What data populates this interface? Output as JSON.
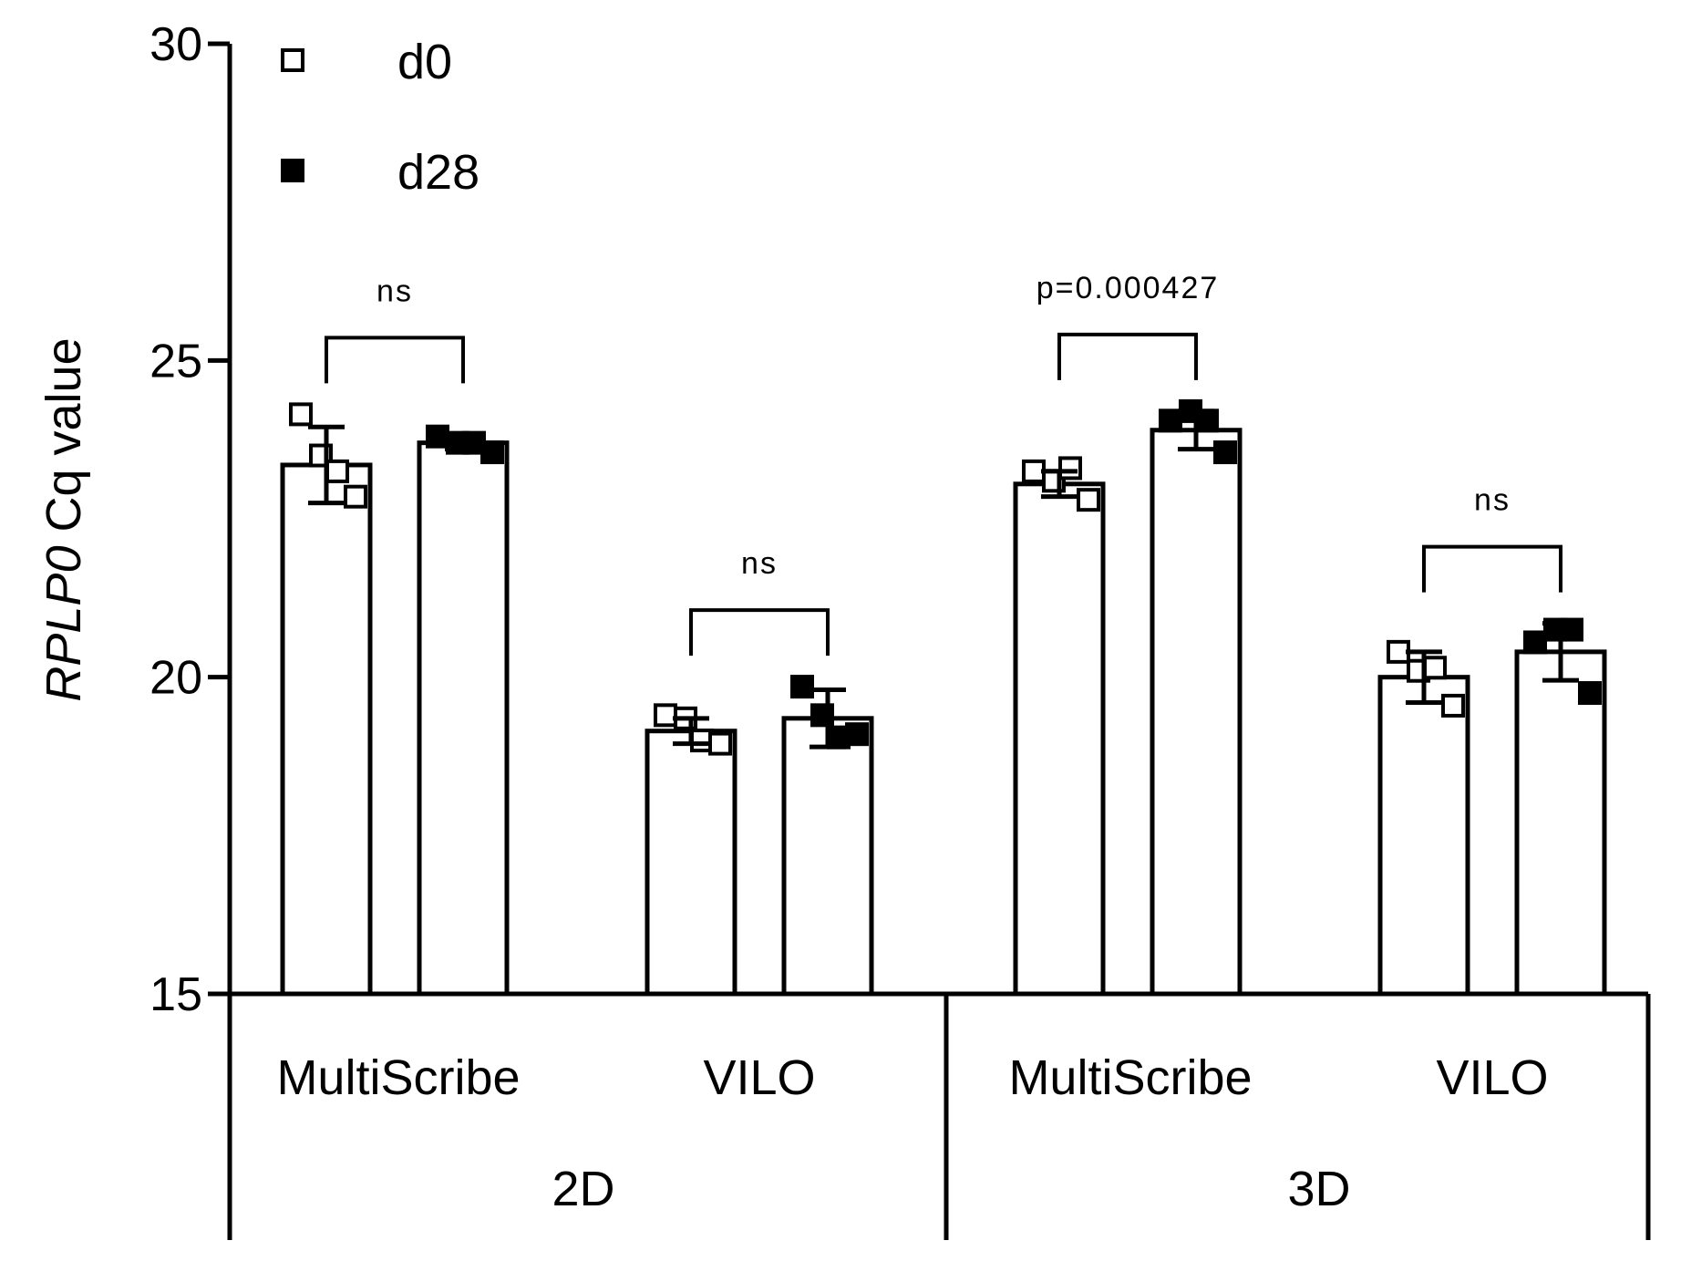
{
  "chart_data": {
    "type": "bar",
    "ylabel_italic": "RPLP0",
    "ylabel_rest": " Cq value",
    "ylim": [
      15,
      30
    ],
    "yticks": [
      15,
      20,
      25,
      30
    ],
    "legend": [
      {
        "name": "d0",
        "marker": "open-square"
      },
      {
        "name": "d28",
        "marker": "filled-square"
      }
    ],
    "groups": [
      {
        "name": "2D",
        "categories": [
          {
            "name": "MultiScribe",
            "bars": [
              {
                "series": "d0",
                "mean": 23.35,
                "sd": 0.6,
                "points": [
                  24.15,
                  23.5,
                  23.25,
                  22.85
                ]
              },
              {
                "series": "d28",
                "mean": 23.7,
                "sd": 0.1,
                "points": [
                  23.8,
                  23.7,
                  23.7,
                  23.55
                ]
              }
            ],
            "significance": "ns"
          },
          {
            "name": "VILO",
            "bars": [
              {
                "series": "d0",
                "mean": 19.15,
                "sd": 0.2,
                "points": [
                  19.4,
                  19.35,
                  19.0,
                  18.95
                ]
              },
              {
                "series": "d28",
                "mean": 19.35,
                "sd": 0.45,
                "points": [
                  19.85,
                  19.4,
                  19.05,
                  19.1
                ]
              }
            ],
            "significance": "ns"
          }
        ]
      },
      {
        "name": "3D",
        "categories": [
          {
            "name": "MultiScribe",
            "bars": [
              {
                "series": "d0",
                "mean": 23.05,
                "sd": 0.2,
                "points": [
                  23.25,
                  23.1,
                  23.3,
                  22.8
                ]
              },
              {
                "series": "d28",
                "mean": 23.9,
                "sd": 0.3,
                "points": [
                  24.05,
                  24.2,
                  24.05,
                  23.55
                ]
              }
            ],
            "significance": "p=0.000427"
          },
          {
            "name": "VILO",
            "bars": [
              {
                "series": "d0",
                "mean": 20.0,
                "sd": 0.4,
                "points": [
                  20.4,
                  20.1,
                  20.15,
                  19.55
                ]
              },
              {
                "series": "d28",
                "mean": 20.4,
                "sd": 0.45,
                "points": [
                  20.55,
                  20.75,
                  20.75,
                  19.75
                ]
              }
            ],
            "significance": "ns"
          }
        ]
      }
    ]
  }
}
